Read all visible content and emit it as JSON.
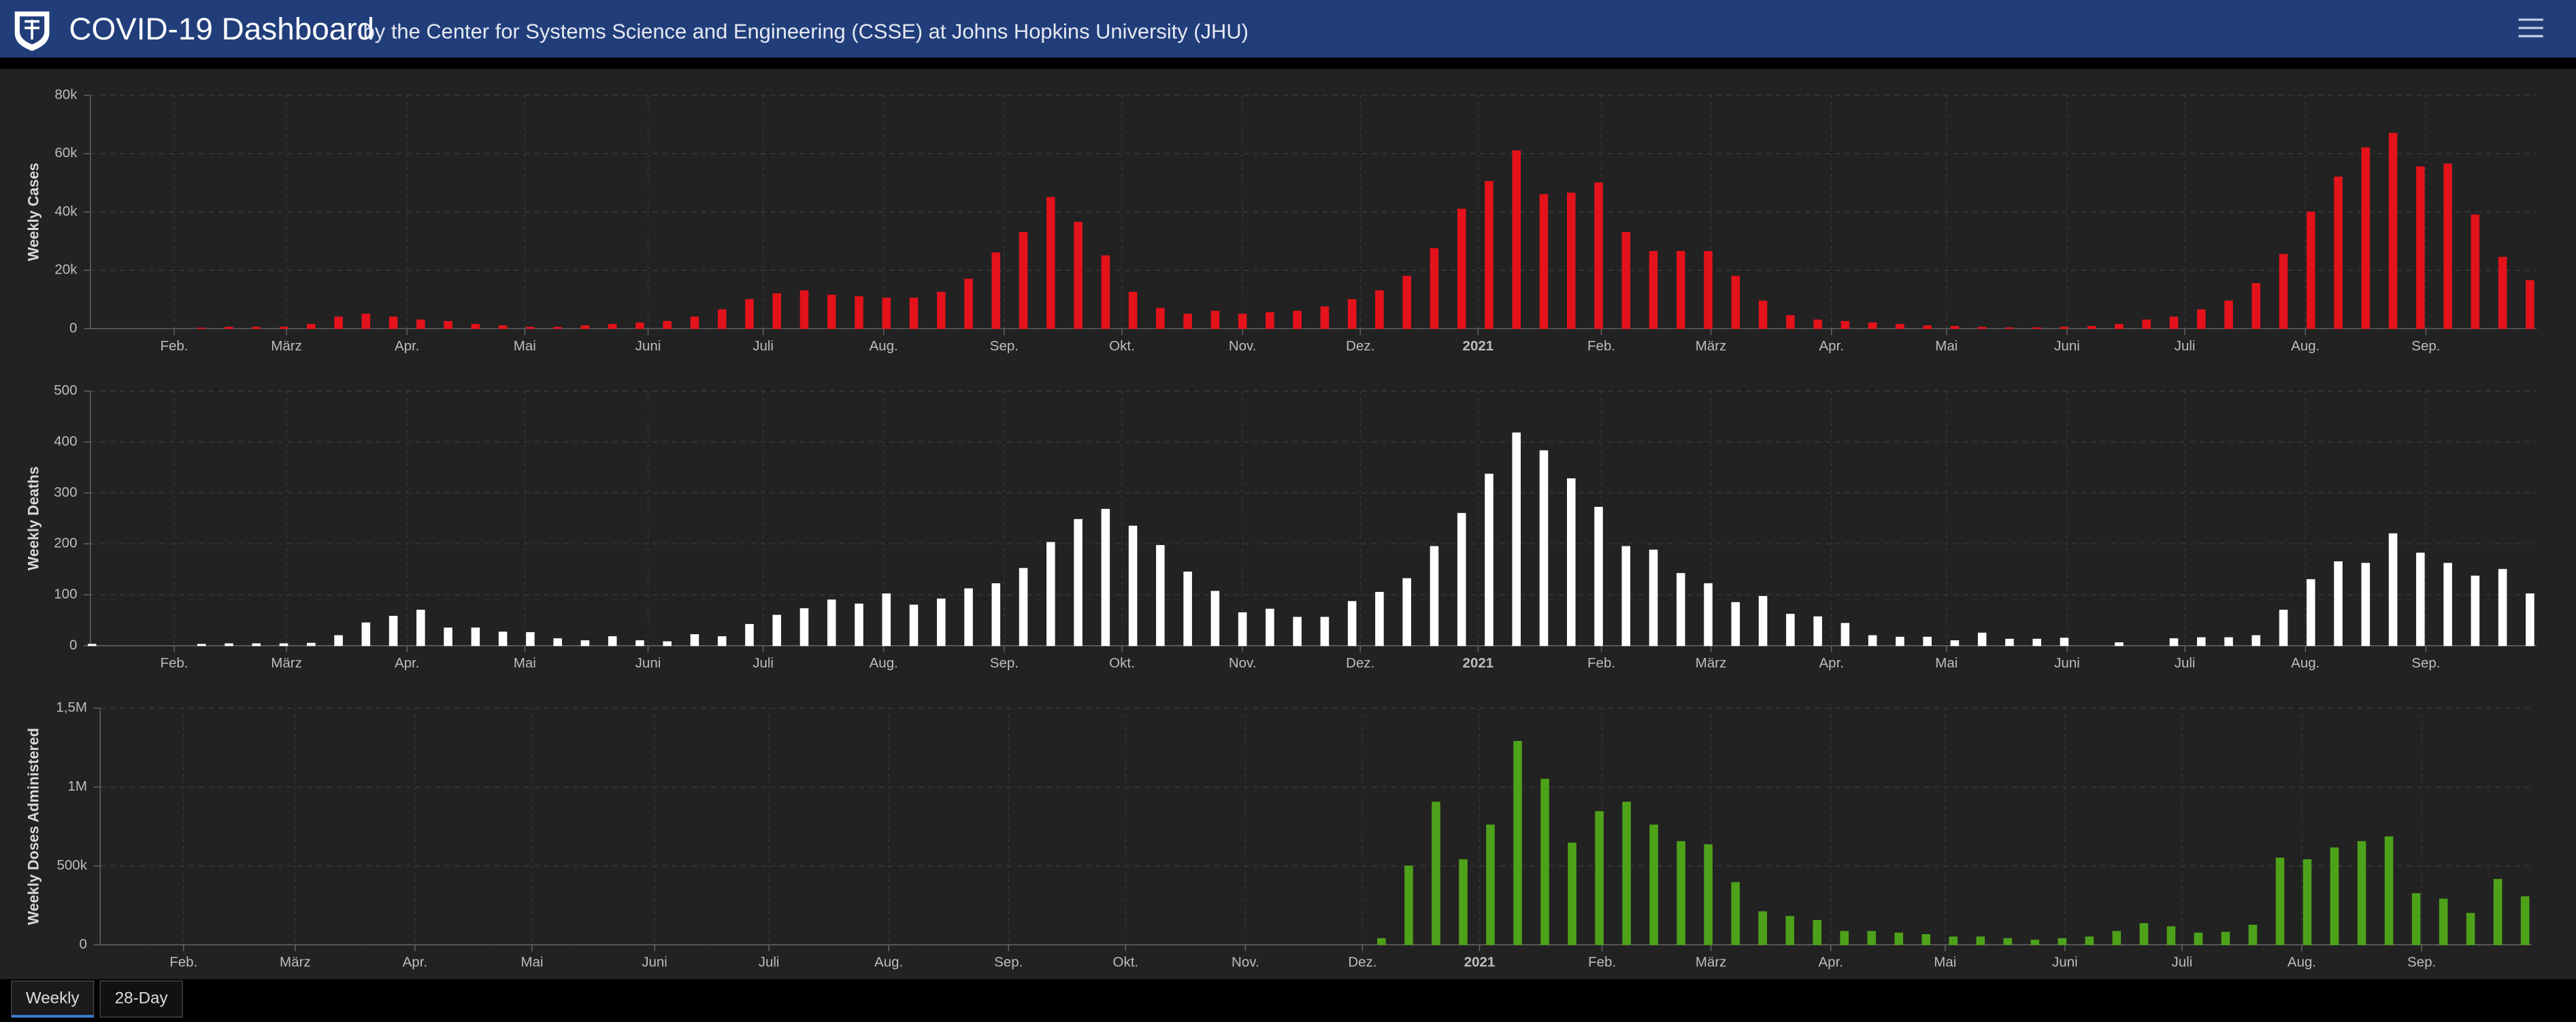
{
  "header": {
    "title": "COVID-19 Dashboard",
    "subtitle": "by the Center for Systems Science and Engineering (CSSE) at Johns Hopkins University (JHU)"
  },
  "tabs": [
    "Weekly",
    "28-Day"
  ],
  "chart_data": [
    {
      "type": "bar",
      "ylabel": "Weekly Cases",
      "color": "#e3121b",
      "grid": true,
      "values": [
        0,
        0,
        0,
        0,
        200,
        500,
        500,
        500,
        1500,
        4000,
        5000,
        4000,
        3000,
        2500,
        1500,
        1000,
        500,
        500,
        1000,
        1500,
        2000,
        2500,
        4000,
        6500,
        10000,
        12000,
        13000,
        11500,
        11000,
        10500,
        10500,
        12500,
        17000,
        26000,
        33000,
        45000,
        36500,
        25000,
        12500,
        7000,
        5000,
        6000,
        5000,
        5500,
        6000,
        7500,
        10000,
        13000,
        18000,
        27500,
        41000,
        50500,
        61000,
        46000,
        46500,
        50000,
        33000,
        26500,
        26500,
        26500,
        18000,
        9500,
        4500,
        3000,
        2500,
        2000,
        1500,
        1000,
        800,
        500,
        300,
        300,
        500,
        800,
        1500,
        3000,
        4000,
        6500,
        9500,
        15500,
        25500,
        40000,
        52000,
        62000,
        67000,
        55500,
        56500,
        39000,
        24500,
        16500
      ],
      "ylim": [
        0,
        80000
      ],
      "yticks": [
        0,
        {
          "value": 20000,
          "label": "20k"
        },
        {
          "value": 40000,
          "label": "40k"
        },
        {
          "value": 60000,
          "label": "60k"
        },
        {
          "value": 80000,
          "label": "80k"
        }
      ],
      "xlim": [
        0,
        89
      ],
      "xticks": [
        {
          "value": 3.0,
          "label": "Feb."
        },
        {
          "value": 7.1,
          "label": "März"
        },
        {
          "value": 11.5,
          "label": "Apr."
        },
        {
          "value": 15.8,
          "label": "Mai"
        },
        {
          "value": 20.3,
          "label": "Juni"
        },
        {
          "value": 24.5,
          "label": "Juli"
        },
        {
          "value": 28.9,
          "label": "Aug."
        },
        {
          "value": 33.3,
          "label": "Sep."
        },
        {
          "value": 37.6,
          "label": "Okt."
        },
        {
          "value": 42.0,
          "label": "Nov."
        },
        {
          "value": 46.3,
          "label": "Dez."
        },
        {
          "value": 50.6,
          "label": "2021"
        },
        {
          "value": 55.1,
          "label": "Feb."
        },
        {
          "value": 59.1,
          "label": "März"
        },
        {
          "value": 63.5,
          "label": "Apr."
        },
        {
          "value": 67.7,
          "label": "Mai"
        },
        {
          "value": 72.1,
          "label": "Juni"
        },
        {
          "value": 76.4,
          "label": "Juli"
        },
        {
          "value": 80.8,
          "label": "Aug."
        },
        {
          "value": 85.2,
          "label": "Sep."
        }
      ]
    },
    {
      "type": "bar",
      "ylabel": "Weekly Deaths",
      "color": "#ffffff",
      "grid": true,
      "values": [
        3,
        0,
        0,
        0,
        3,
        4,
        4,
        4,
        5,
        20,
        45,
        58,
        70,
        35,
        35,
        27,
        26,
        14,
        10,
        18,
        10,
        8,
        22,
        18,
        42,
        60,
        73,
        90,
        82,
        102,
        80,
        92,
        112,
        122,
        152,
        203,
        248,
        268,
        235,
        197,
        145,
        107,
        65,
        72,
        56,
        56,
        87,
        105,
        132,
        195,
        260,
        337,
        418,
        383,
        328,
        272,
        195,
        188,
        142,
        122,
        85,
        97,
        62,
        57,
        44,
        20,
        17,
        17,
        10,
        25,
        13,
        13,
        15,
        0,
        6,
        0,
        14,
        16,
        16,
        20,
        70,
        130,
        165,
        162,
        220,
        182,
        162,
        137,
        150,
        102
      ],
      "ylim": [
        0,
        500
      ],
      "yticks": [
        0,
        100,
        200,
        300,
        400,
        500
      ],
      "xlim": [
        0,
        89
      ],
      "xticks": [
        {
          "value": 3.0,
          "label": "Feb."
        },
        {
          "value": 7.1,
          "label": "März"
        },
        {
          "value": 11.5,
          "label": "Apr."
        },
        {
          "value": 15.8,
          "label": "Mai"
        },
        {
          "value": 20.3,
          "label": "Juni"
        },
        {
          "value": 24.5,
          "label": "Juli"
        },
        {
          "value": 28.9,
          "label": "Aug."
        },
        {
          "value": 33.3,
          "label": "Sep."
        },
        {
          "value": 37.6,
          "label": "Okt."
        },
        {
          "value": 42.0,
          "label": "Nov."
        },
        {
          "value": 46.3,
          "label": "Dez."
        },
        {
          "value": 50.6,
          "label": "2021"
        },
        {
          "value": 55.1,
          "label": "Feb."
        },
        {
          "value": 59.1,
          "label": "März"
        },
        {
          "value": 63.5,
          "label": "Apr."
        },
        {
          "value": 67.7,
          "label": "Mai"
        },
        {
          "value": 72.1,
          "label": "Juni"
        },
        {
          "value": 76.4,
          "label": "Juli"
        },
        {
          "value": 80.8,
          "label": "Aug."
        },
        {
          "value": 85.2,
          "label": "Sep."
        }
      ]
    },
    {
      "type": "bar",
      "ylabel": "Weekly Doses Administered",
      "color": "#4ea21a",
      "grid": true,
      "values": [
        0,
        0,
        0,
        0,
        0,
        0,
        0,
        0,
        0,
        0,
        0,
        0,
        0,
        0,
        0,
        0,
        0,
        0,
        0,
        0,
        0,
        0,
        0,
        0,
        0,
        0,
        0,
        0,
        0,
        0,
        0,
        0,
        0,
        0,
        0,
        0,
        0,
        0,
        0,
        0,
        0,
        0,
        0,
        0,
        0,
        0,
        0,
        40000,
        500000,
        905000,
        540000,
        760000,
        1290000,
        1050000,
        645000,
        845000,
        905000,
        760000,
        655000,
        635000,
        395000,
        210000,
        180000,
        155000,
        85000,
        85000,
        75000,
        65000,
        50000,
        50000,
        40000,
        30000,
        40000,
        50000,
        85000,
        135000,
        115000,
        75000,
        80000,
        125000,
        550000,
        540000,
        615000,
        655000,
        685000,
        325000,
        290000,
        200000,
        415000,
        305000
      ],
      "ylim": [
        0,
        1500000
      ],
      "yticks": [
        0,
        {
          "value": 500000,
          "label": "500k"
        },
        {
          "value": 1000000,
          "label": "1M"
        },
        {
          "value": 1500000,
          "label": "1,5M"
        }
      ],
      "xlim": [
        0,
        89
      ],
      "xticks": [
        {
          "value": 3.0,
          "label": "Feb."
        },
        {
          "value": 7.1,
          "label": "März"
        },
        {
          "value": 11.5,
          "label": "Apr."
        },
        {
          "value": 15.8,
          "label": "Mai"
        },
        {
          "value": 20.3,
          "label": "Juni"
        },
        {
          "value": 24.5,
          "label": "Juli"
        },
        {
          "value": 28.9,
          "label": "Aug."
        },
        {
          "value": 33.3,
          "label": "Sep."
        },
        {
          "value": 37.6,
          "label": "Okt."
        },
        {
          "value": 42.0,
          "label": "Nov."
        },
        {
          "value": 46.3,
          "label": "Dez."
        },
        {
          "value": 50.6,
          "label": "2021"
        },
        {
          "value": 55.1,
          "label": "Feb."
        },
        {
          "value": 59.1,
          "label": "März"
        },
        {
          "value": 63.5,
          "label": "Apr."
        },
        {
          "value": 67.7,
          "label": "Mai"
        },
        {
          "value": 72.1,
          "label": "Juni"
        },
        {
          "value": 76.4,
          "label": "Juli"
        },
        {
          "value": 80.8,
          "label": "Aug."
        },
        {
          "value": 85.2,
          "label": "Sep."
        }
      ]
    }
  ]
}
